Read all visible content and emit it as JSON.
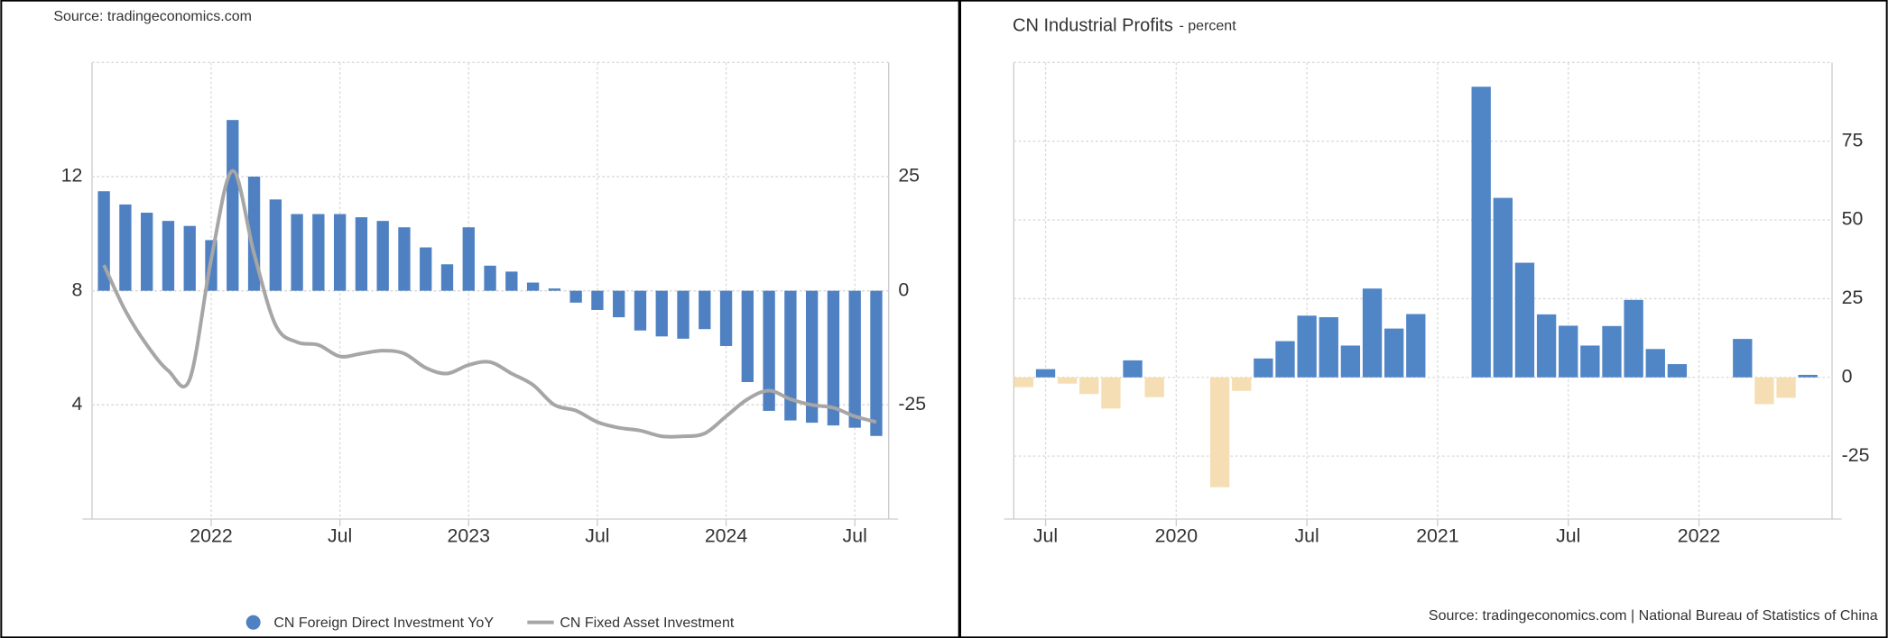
{
  "chart_data": [
    {
      "type": "bar-line",
      "source": "Source: tradingeconomics.com",
      "x": [
        "2021-08",
        "2021-09",
        "2021-10",
        "2021-11",
        "2021-12",
        "2022-01",
        "2022-02",
        "2022-03",
        "2022-04",
        "2022-05",
        "2022-06",
        "2022-07",
        "2022-08",
        "2022-09",
        "2022-10",
        "2022-11",
        "2022-12",
        "2023-01",
        "2023-02",
        "2023-03",
        "2023-04",
        "2023-05",
        "2023-06",
        "2023-07",
        "2023-08",
        "2023-09",
        "2023-10",
        "2023-11",
        "2023-12",
        "2024-01",
        "2024-02",
        "2024-03",
        "2024-04",
        "2024-05",
        "2024-06",
        "2024-07",
        "2024-08"
      ],
      "series": [
        {
          "name": "CN Foreign Direct Investment YoY",
          "type": "bar",
          "axis": "y2",
          "color": "#4f81c2",
          "values": [
            21.8,
            18.9,
            17.1,
            15.3,
            14.2,
            11.1,
            37.4,
            25.0,
            20.0,
            16.8,
            16.8,
            16.8,
            16.1,
            15.3,
            13.9,
            9.5,
            5.8,
            13.9,
            5.5,
            4.2,
            1.8,
            0.5,
            -2.6,
            -4.2,
            -5.8,
            -8.7,
            -10.0,
            -10.5,
            -8.4,
            -12.1,
            -20.0,
            -26.3,
            -28.4,
            -28.9,
            -29.5,
            -30.0,
            -31.8
          ]
        },
        {
          "name": "CN Fixed Asset Investment",
          "type": "line",
          "color": "#a6a6a6",
          "values": [
            8.9,
            7.3,
            6.1,
            5.2,
            4.9,
            9.1,
            12.2,
            9.3,
            6.8,
            6.2,
            6.1,
            5.7,
            5.8,
            5.9,
            5.8,
            5.3,
            5.1,
            5.4,
            5.5,
            5.1,
            4.7,
            4.0,
            3.8,
            3.4,
            3.2,
            3.1,
            2.9,
            2.9,
            3.0,
            3.6,
            4.2,
            4.5,
            4.2,
            4.0,
            3.9,
            3.6,
            3.4
          ]
        }
      ],
      "ylim": [
        0,
        16
      ],
      "yticks": [
        4,
        8,
        12
      ],
      "y2lim": [
        -50,
        50
      ],
      "y2ticks": [
        -25,
        0,
        25
      ],
      "xticks": [
        {
          "value": "2022-01",
          "label": "2022"
        },
        {
          "value": "2022-07",
          "label": "Jul"
        },
        {
          "value": "2023-01",
          "label": "2023"
        },
        {
          "value": "2023-07",
          "label": "Jul"
        },
        {
          "value": "2024-01",
          "label": "2024"
        },
        {
          "value": "2024-07",
          "label": "Jul"
        }
      ],
      "grid": true
    },
    {
      "type": "bar",
      "title": "CN Industrial Profits",
      "subtitle": "- percent",
      "source": "Source: tradingeconomics.com | National Bureau of Statistics of China",
      "x": [
        "2019-06",
        "2019-07",
        "2019-08",
        "2019-09",
        "2019-10",
        "2019-11",
        "2019-12",
        "2020-01",
        "2020-02",
        "2020-03",
        "2020-04",
        "2020-05",
        "2020-06",
        "2020-07",
        "2020-08",
        "2020-09",
        "2020-10",
        "2020-11",
        "2020-12",
        "2021-01",
        "2021-02",
        "2021-03",
        "2021-04",
        "2021-05",
        "2021-06",
        "2021-07",
        "2021-08",
        "2021-09",
        "2021-10",
        "2021-11",
        "2021-12",
        "2022-01",
        "2022-02",
        "2022-03",
        "2022-04",
        "2022-05",
        "2022-06"
      ],
      "values": [
        -3.1,
        2.6,
        -2.0,
        -5.3,
        -9.9,
        5.4,
        -6.3,
        null,
        null,
        -34.9,
        -4.3,
        6.0,
        11.5,
        19.6,
        19.1,
        10.1,
        28.2,
        15.5,
        20.1,
        null,
        null,
        92.3,
        57.0,
        36.4,
        20.0,
        16.4,
        10.1,
        16.3,
        24.6,
        9.0,
        4.2,
        null,
        null,
        12.2,
        -8.5,
        -6.5,
        0.8
      ],
      "color": "#5085c6",
      "negative_color": "#f5deb3",
      "ylim": [
        -45,
        100
      ],
      "yticks": [
        -25,
        0,
        25,
        50,
        75
      ],
      "xticks": [
        {
          "value": "2019-07",
          "label": "Jul"
        },
        {
          "value": "2020-01",
          "label": "2020"
        },
        {
          "value": "2020-07",
          "label": "Jul"
        },
        {
          "value": "2021-01",
          "label": "2021"
        },
        {
          "value": "2021-07",
          "label": "Jul"
        },
        {
          "value": "2022-01",
          "label": "2022"
        }
      ],
      "grid": true
    }
  ]
}
